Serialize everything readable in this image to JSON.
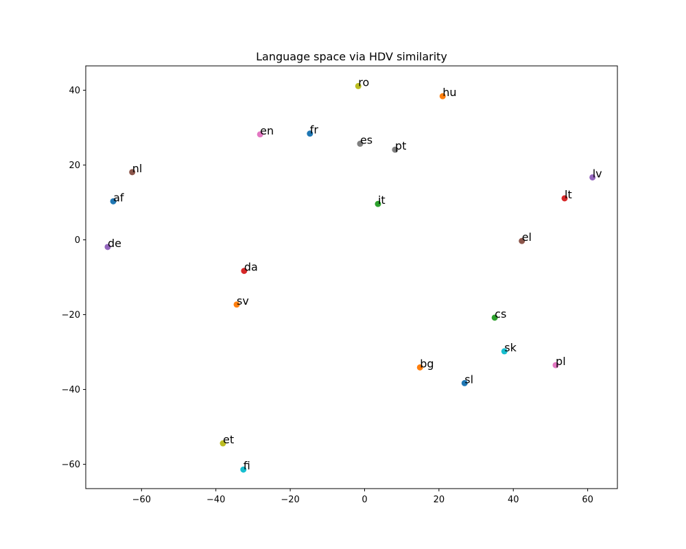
{
  "chart_data": {
    "type": "scatter",
    "title": "Language space via HDV similarity",
    "xlabel": "",
    "ylabel": "",
    "xlim": [
      -75,
      68
    ],
    "ylim": [
      -66.5,
      46.5
    ],
    "xticks": [
      -60,
      -40,
      -20,
      0,
      20,
      40,
      60
    ],
    "yticks": [
      -60,
      -40,
      -20,
      0,
      20,
      40
    ],
    "grid": false,
    "points": [
      {
        "label": "af",
        "x": -67.6,
        "y": 10.3,
        "color": "#1f77b4"
      },
      {
        "label": "bg",
        "x": 14.9,
        "y": -34.1,
        "color": "#ff7f0e"
      },
      {
        "label": "cs",
        "x": 35.0,
        "y": -20.8,
        "color": "#2ca02c"
      },
      {
        "label": "da",
        "x": -32.4,
        "y": -8.3,
        "color": "#d62728"
      },
      {
        "label": "de",
        "x": -69.1,
        "y": -1.9,
        "color": "#9467bd"
      },
      {
        "label": "el",
        "x": 42.3,
        "y": -0.3,
        "color": "#8c564b"
      },
      {
        "label": "en",
        "x": -28.1,
        "y": 28.2,
        "color": "#e377c2"
      },
      {
        "label": "es",
        "x": -1.2,
        "y": 25.7,
        "color": "#7f7f7f"
      },
      {
        "label": "et",
        "x": -38.1,
        "y": -54.4,
        "color": "#bcbd22"
      },
      {
        "label": "fi",
        "x": -32.6,
        "y": -61.4,
        "color": "#17becf"
      },
      {
        "label": "fr",
        "x": -14.7,
        "y": 28.4,
        "color": "#1f77b4"
      },
      {
        "label": "hu",
        "x": 21.0,
        "y": 38.4,
        "color": "#ff7f0e"
      },
      {
        "label": "it",
        "x": 3.6,
        "y": 9.6,
        "color": "#2ca02c"
      },
      {
        "label": "lt",
        "x": 53.8,
        "y": 11.1,
        "color": "#d62728"
      },
      {
        "label": "lv",
        "x": 61.3,
        "y": 16.7,
        "color": "#9467bd"
      },
      {
        "label": "nl",
        "x": -62.5,
        "y": 18.1,
        "color": "#8c564b"
      },
      {
        "label": "pl",
        "x": 51.4,
        "y": -33.5,
        "color": "#e377c2"
      },
      {
        "label": "pt",
        "x": 8.2,
        "y": 24.1,
        "color": "#7f7f7f"
      },
      {
        "label": "ro",
        "x": -1.7,
        "y": 41.1,
        "color": "#bcbd22"
      },
      {
        "label": "sk",
        "x": 37.6,
        "y": -29.8,
        "color": "#17becf"
      },
      {
        "label": "sl",
        "x": 26.9,
        "y": -38.3,
        "color": "#1f77b4"
      },
      {
        "label": "sv",
        "x": -34.4,
        "y": -17.3,
        "color": "#ff7f0e"
      }
    ]
  }
}
